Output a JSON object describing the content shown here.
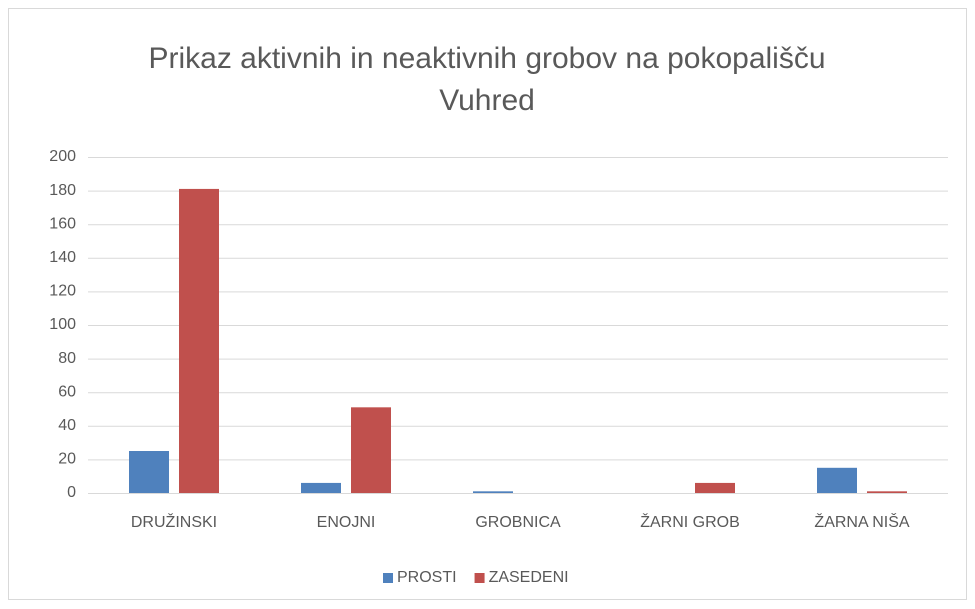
{
  "chart_data": {
    "type": "bar",
    "title": "Prikaz aktivnih in neaktivnih grobov na pokopališču Vuhred",
    "categories": [
      "DRUŽINSKI",
      "ENOJNI",
      "GROBNICA",
      "ŽARNI GROB",
      "ŽARNA NIŠA"
    ],
    "series": [
      {
        "name": "PROSTI",
        "color": "#4f81bd",
        "values": [
          25,
          6,
          1,
          0,
          15
        ]
      },
      {
        "name": "ZASEDENI",
        "color": "#c0504d",
        "values": [
          181,
          51,
          0,
          6,
          1
        ]
      }
    ],
    "ylim": [
      0,
      200
    ],
    "yticks": [
      0,
      20,
      40,
      60,
      80,
      100,
      120,
      140,
      160,
      180,
      200
    ],
    "grid": true,
    "legend": "bottom"
  }
}
